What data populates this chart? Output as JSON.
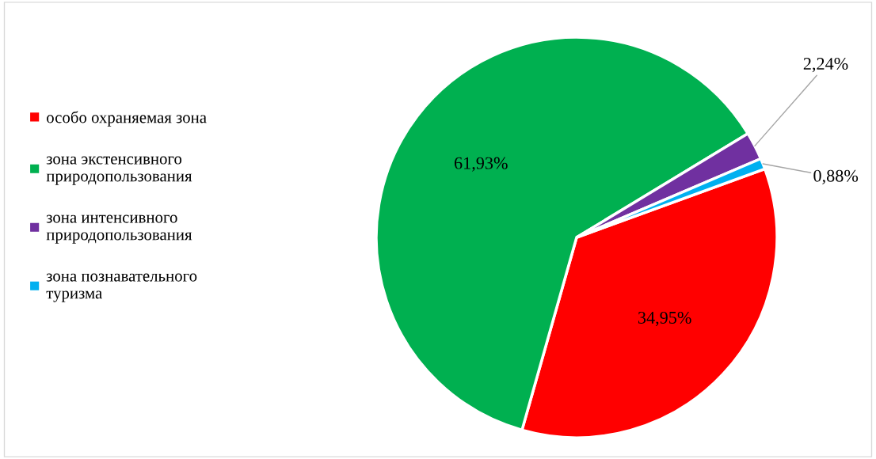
{
  "chart_data": {
    "type": "pie",
    "categories": [
      "особо охраняемая зона",
      "зона экстенсивного\nприродопользования",
      "зона интенсивного\nприродопользования",
      "зона познавательного\nтуризма"
    ],
    "values": [
      34.95,
      61.93,
      2.24,
      0.88
    ],
    "colors": [
      "#ff0000",
      "#00b050",
      "#7030a0",
      "#00b0f0"
    ],
    "value_labels": [
      "34,95%",
      "61,93%",
      "2,24%",
      "0,88%"
    ],
    "legend": "left"
  }
}
